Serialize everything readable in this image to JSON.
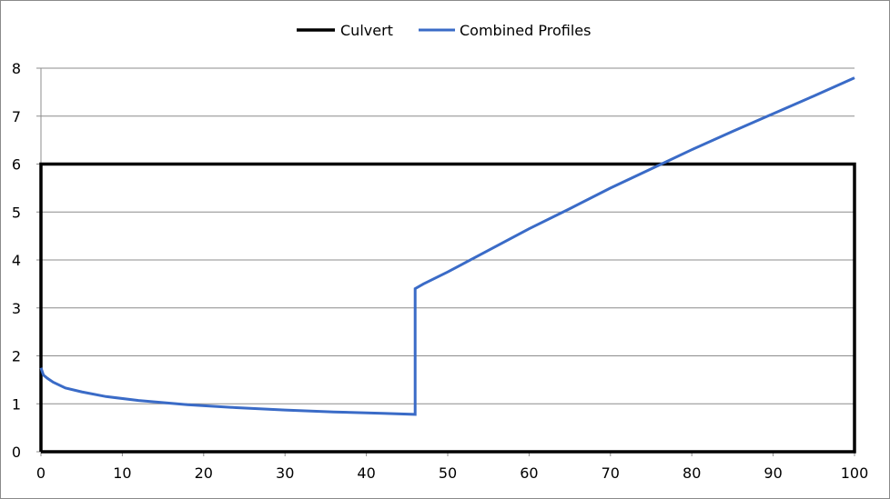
{
  "chart_data": {
    "type": "line",
    "title": "",
    "xlabel": "",
    "ylabel": "",
    "xlim": [
      0,
      100
    ],
    "ylim": [
      0,
      8
    ],
    "x_ticks": [
      0,
      10,
      20,
      30,
      40,
      50,
      60,
      70,
      80,
      90,
      100
    ],
    "y_ticks": [
      0,
      1,
      2,
      3,
      4,
      5,
      6,
      7,
      8
    ],
    "grid": "horizontal",
    "legend_position": "top",
    "series": [
      {
        "name": "Culvert",
        "color": "#000000",
        "x": [
          0,
          0,
          100,
          100,
          0
        ],
        "y": [
          0,
          6,
          6,
          0,
          0
        ]
      },
      {
        "name": "Combined Profiles",
        "color": "#3a6bc7",
        "x": [
          0,
          0.3,
          0.8,
          1.5,
          3,
          5,
          8,
          12,
          18,
          24,
          30,
          36,
          42,
          46,
          46,
          47,
          50,
          55,
          60,
          65,
          70,
          76,
          80,
          85,
          90,
          95,
          100
        ],
        "y": [
          1.75,
          1.6,
          1.53,
          1.45,
          1.33,
          1.25,
          1.15,
          1.07,
          0.98,
          0.92,
          0.87,
          0.83,
          0.8,
          0.78,
          3.4,
          3.5,
          3.75,
          4.2,
          4.65,
          5.07,
          5.5,
          5.98,
          6.3,
          6.68,
          7.05,
          7.42,
          7.8
        ]
      }
    ]
  }
}
